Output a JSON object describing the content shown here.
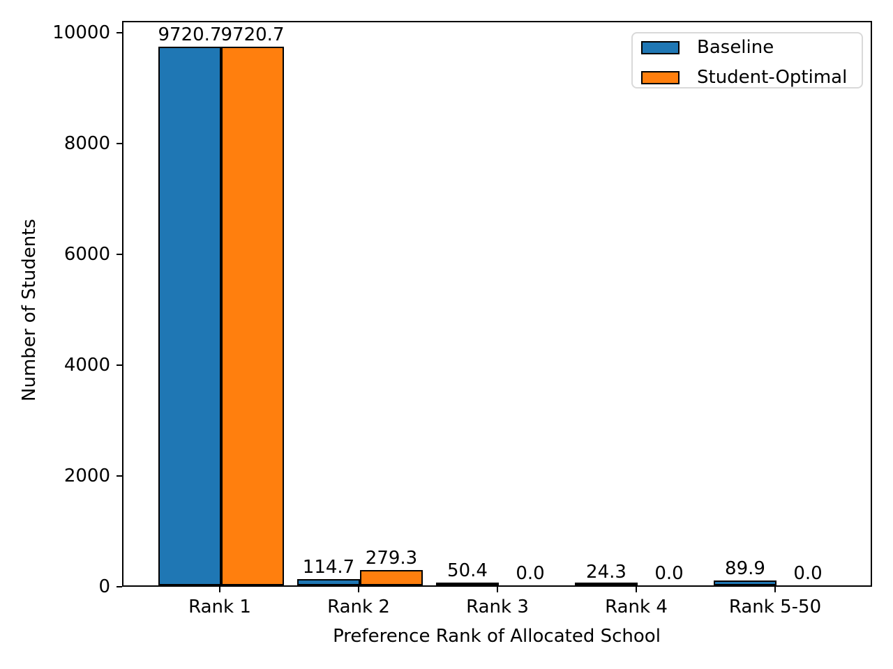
{
  "chart_data": {
    "type": "bar",
    "title": "",
    "xlabel": "Preference Rank of Allocated School",
    "ylabel": "Number of Students",
    "categories": [
      "Rank 1",
      "Rank 2",
      "Rank 3",
      "Rank 4",
      "Rank 5-50"
    ],
    "series": [
      {
        "name": "Baseline",
        "color": "#1f77b4",
        "values": [
          9720.7,
          114.7,
          50.4,
          24.3,
          89.9
        ],
        "bar_labels": [
          "9720.7",
          "114.7",
          "50.4",
          "24.3",
          "89.9"
        ]
      },
      {
        "name": "Student-Optimal",
        "color": "#ff7f0e",
        "values": [
          9720.7,
          279.3,
          0.0,
          0.0,
          0.0
        ],
        "bar_labels": [
          "9720.7",
          "279.3",
          "0.0",
          "0.0",
          "0.0"
        ]
      }
    ],
    "ylim": [
      0,
      10214
    ],
    "yticks": [
      0,
      2000,
      4000,
      6000,
      8000,
      10000
    ],
    "ytick_labels": [
      "0",
      "2000",
      "4000",
      "6000",
      "8000",
      "10000"
    ],
    "bar_edge_color": "#000000",
    "grid": false,
    "legend": {
      "position": "upper right",
      "entries": [
        "Baseline",
        "Student-Optimal"
      ]
    }
  }
}
